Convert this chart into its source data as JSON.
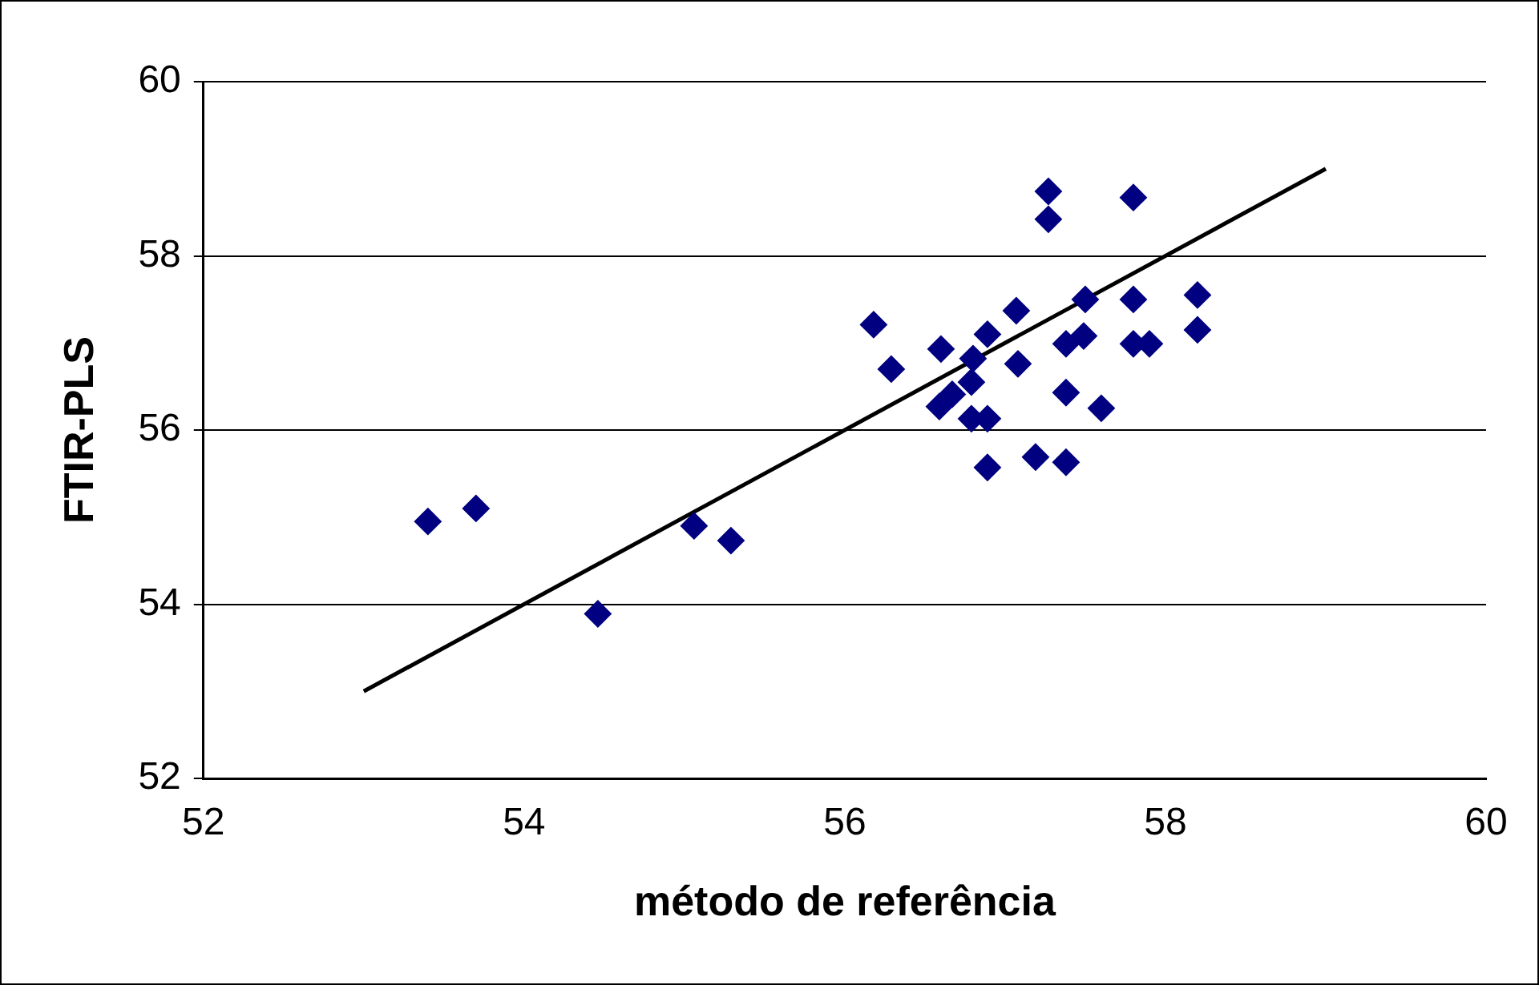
{
  "chart_data": {
    "type": "scatter",
    "xlabel": "método de referência",
    "ylabel": "FTIR-PLS",
    "xlim": [
      52,
      60
    ],
    "xticks": [
      52,
      54,
      56,
      58,
      60
    ],
    "ylim": [
      52,
      60
    ],
    "yticks": [
      52,
      54,
      56,
      58,
      60
    ],
    "grid": "y",
    "legend": false,
    "marker": "diamond",
    "series": [
      {
        "color": "#000080",
        "x": [
          53.4,
          53.7,
          54.46,
          55.06,
          55.29,
          56.18,
          56.29,
          56.6,
          56.8,
          56.89,
          57.07,
          57.08,
          57.27,
          57.27,
          57.8,
          57.5,
          57.8,
          58.2,
          58.2,
          57.38,
          57.49,
          57.8,
          57.9,
          57.38,
          57.6,
          56.59,
          56.67,
          56.79,
          56.79,
          56.89,
          56.89,
          57.19,
          57.38
        ],
        "values": [
          54.95,
          55.1,
          53.89,
          54.9,
          54.73,
          57.21,
          56.7,
          56.93,
          56.82,
          57.1,
          57.37,
          56.76,
          58.74,
          58.42,
          58.67,
          57.5,
          57.5,
          57.55,
          57.15,
          56.99,
          57.08,
          56.99,
          56.99,
          56.43,
          56.25,
          56.27,
          56.41,
          56.55,
          56.13,
          56.13,
          55.57,
          55.69,
          55.63
        ]
      },
      {
        "type": "line",
        "color": "#000000",
        "marker": "none",
        "x": [
          53,
          59
        ],
        "values": [
          53,
          59
        ]
      }
    ]
  }
}
